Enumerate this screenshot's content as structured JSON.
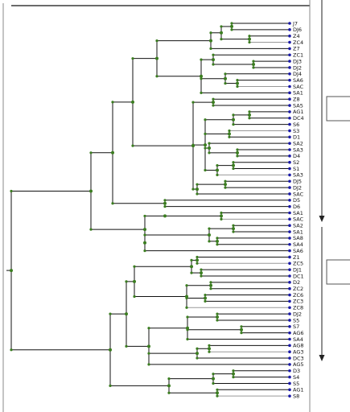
{
  "leaf_labels": [
    "J7",
    "DJ6",
    "Z4",
    "ZC4",
    "Z7",
    "ZC1",
    "DJ3",
    "DJ2",
    "DJ4",
    "SA6",
    "SAC",
    "SA1",
    "Z8",
    "SA5",
    "AG1",
    "DC4",
    "S6",
    "S3",
    "D1",
    "SA2",
    "SA3",
    "D4",
    "S2",
    "S1",
    "SA3",
    "DJ5",
    "DJ2",
    "SAC",
    "D5",
    "D6",
    "SA1",
    "SAC",
    "SA2",
    "SA1",
    "SA8",
    "SA4",
    "SA6",
    "Z1",
    "ZC5",
    "DJ1",
    "DC1",
    "D2",
    "ZC2",
    "ZC6",
    "ZC3",
    "ZC8",
    "DJ2",
    "S5",
    "S7",
    "AG6",
    "SA4",
    "AG8",
    "AG3",
    "DC3",
    "AG5",
    "D3",
    "S4",
    "S5",
    "AG1",
    "S8"
  ],
  "colors": {
    "branch": "#111111",
    "inner_node": "#3a7d1f",
    "leaf_node": "#1a1aa8",
    "grey_branch": "#999999",
    "frame": "#888888"
  }
}
